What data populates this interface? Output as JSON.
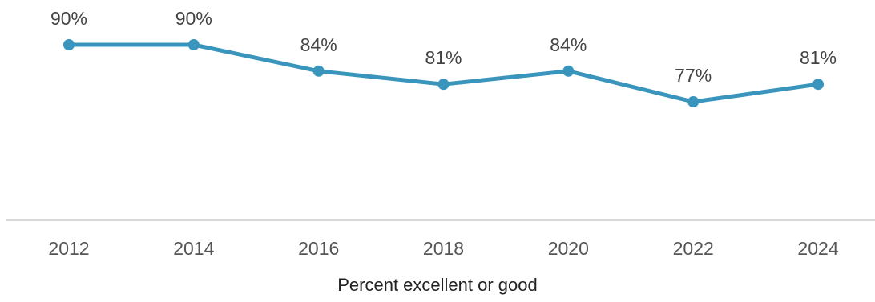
{
  "chart_data": {
    "type": "line",
    "title": "",
    "xlabel": "Percent excellent or good",
    "ylabel": "",
    "x": [
      "2012",
      "2014",
      "2016",
      "2018",
      "2020",
      "2022",
      "2024"
    ],
    "series": [
      {
        "values": [
          90,
          90,
          84,
          81,
          84,
          77,
          81
        ],
        "labels": [
          "90%",
          "90%",
          "84%",
          "81%",
          "84%",
          "77%",
          "81%"
        ],
        "color": "#3a95bd"
      }
    ],
    "ylim": [
      50,
      100
    ],
    "grid": false,
    "legend": "none",
    "axis_color": "#d9d9d9"
  }
}
